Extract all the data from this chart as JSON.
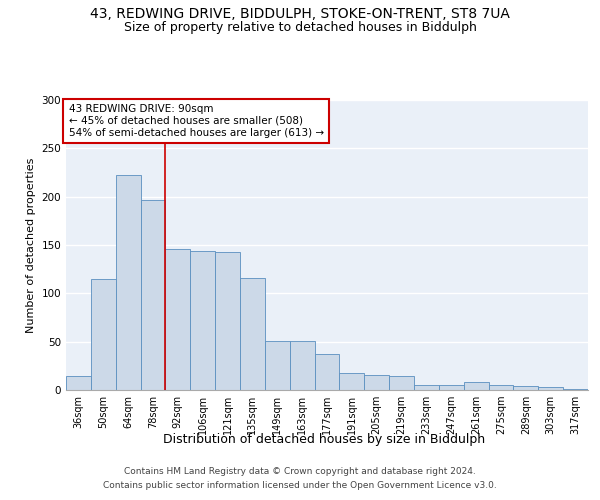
{
  "title_line1": "43, REDWING DRIVE, BIDDULPH, STOKE-ON-TRENT, ST8 7UA",
  "title_line2": "Size of property relative to detached houses in Biddulph",
  "xlabel": "Distribution of detached houses by size in Biddulph",
  "ylabel": "Number of detached properties",
  "categories": [
    "36sqm",
    "50sqm",
    "64sqm",
    "78sqm",
    "92sqm",
    "106sqm",
    "121sqm",
    "135sqm",
    "149sqm",
    "163sqm",
    "177sqm",
    "191sqm",
    "205sqm",
    "219sqm",
    "233sqm",
    "247sqm",
    "261sqm",
    "275sqm",
    "289sqm",
    "303sqm",
    "317sqm"
  ],
  "values": [
    15,
    115,
    222,
    197,
    146,
    144,
    143,
    116,
    51,
    51,
    37,
    18,
    16,
    15,
    5,
    5,
    8,
    5,
    4,
    3,
    1
  ],
  "bar_color": "#ccd9e8",
  "bar_edge_color": "#5a8fc0",
  "red_line_x": 3.5,
  "annotation_text": "43 REDWING DRIVE: 90sqm\n← 45% of detached houses are smaller (508)\n54% of semi-detached houses are larger (613) →",
  "annotation_box_color": "#ffffff",
  "annotation_box_edge": "#cc0000",
  "red_line_color": "#cc0000",
  "ylim": [
    0,
    300
  ],
  "yticks": [
    0,
    50,
    100,
    150,
    200,
    250,
    300
  ],
  "background_color": "#eaf0f8",
  "grid_color": "#ffffff",
  "footer_line1": "Contains HM Land Registry data © Crown copyright and database right 2024.",
  "footer_line2": "Contains public sector information licensed under the Open Government Licence v3.0.",
  "title_fontsize": 10,
  "subtitle_fontsize": 9,
  "ylabel_fontsize": 8,
  "xlabel_fontsize": 9,
  "tick_fontsize": 7,
  "annotation_fontsize": 7.5,
  "footer_fontsize": 6.5
}
